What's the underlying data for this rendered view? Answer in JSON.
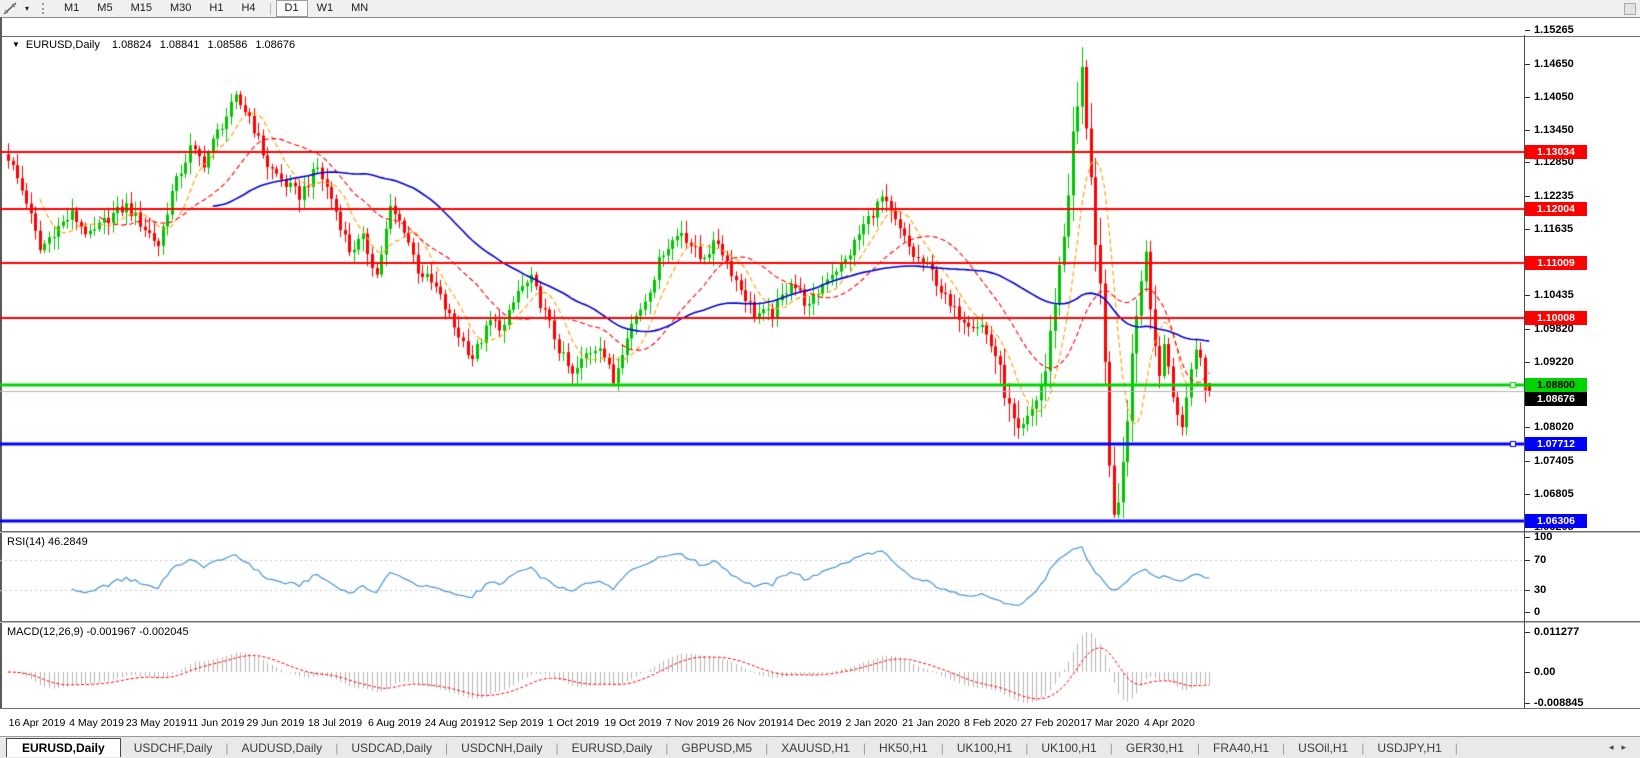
{
  "toolbar": {
    "dropdown_caret": "▾",
    "timeframes": [
      {
        "label": "M1",
        "active": false
      },
      {
        "label": "M5",
        "active": false
      },
      {
        "label": "M15",
        "active": false
      },
      {
        "label": "M30",
        "active": false
      },
      {
        "label": "H1",
        "active": false
      },
      {
        "label": "H4",
        "active": false
      },
      {
        "label": "D1",
        "active": true
      },
      {
        "label": "W1",
        "active": false
      },
      {
        "label": "MN",
        "active": false
      }
    ]
  },
  "window": {
    "title_caret": "▼",
    "symbol_title": "EURUSD,Daily",
    "open": "1.08824",
    "high": "1.08841",
    "low": "1.08586",
    "close": "1.08676"
  },
  "price_axis": {
    "ticks": [
      "1.15265",
      "1.14650",
      "1.14050",
      "1.13450",
      "1.12850",
      "1.12235",
      "1.11635",
      "1.10435",
      "1.09820",
      "1.09220",
      "1.08020",
      "1.07405",
      "1.06805",
      "1.06205"
    ],
    "badges": [
      {
        "value": "1.13034",
        "bg": "#ff0000",
        "fg": "#ffffff"
      },
      {
        "value": "1.12004",
        "bg": "#ff0000",
        "fg": "#ffffff"
      },
      {
        "value": "1.11009",
        "bg": "#ff0000",
        "fg": "#ffffff"
      },
      {
        "value": "1.10008",
        "bg": "#ff0000",
        "fg": "#ffffff"
      },
      {
        "value": "1.08800",
        "bg": "#00d400",
        "fg": "#000000"
      },
      {
        "value": "1.08676",
        "bg": "#000000",
        "fg": "#ffffff"
      },
      {
        "value": "1.07712",
        "bg": "#0000ff",
        "fg": "#ffffff"
      },
      {
        "value": "1.06306",
        "bg": "#0000ff",
        "fg": "#ffffff"
      }
    ]
  },
  "hlines": [
    {
      "price": 1.13034,
      "color": "#ff0000",
      "width": 2,
      "handle": false
    },
    {
      "price": 1.12004,
      "color": "#ff0000",
      "width": 2,
      "handle": false
    },
    {
      "price": 1.11009,
      "color": "#ff0000",
      "width": 2,
      "handle": false
    },
    {
      "price": 1.10008,
      "color": "#ff0000",
      "width": 2,
      "handle": false
    },
    {
      "price": 1.088,
      "color": "#00d400",
      "width": 3,
      "handle": true
    },
    {
      "price": 1.08676,
      "color": "#b4b4b4",
      "width": 1,
      "handle": false
    },
    {
      "price": 1.07712,
      "color": "#0000ff",
      "width": 3,
      "handle": true
    },
    {
      "price": 1.06306,
      "color": "#0000ff",
      "width": 3,
      "handle": false
    }
  ],
  "rsi": {
    "label": "RSI(14) 46.2849",
    "period": 14,
    "value": "46.2849",
    "axis": [
      "100",
      "70",
      "30",
      "0"
    ],
    "levels": [
      70,
      30
    ],
    "line_color": "#4a96d2"
  },
  "macd": {
    "label": "MACD(12,26,9) -0.001967 -0.002045",
    "fast": 12,
    "slow": 26,
    "signal": 9,
    "values": [
      "-0.001967",
      "-0.002045"
    ],
    "axis": [
      "0.011277",
      "0.00",
      "-0.008845"
    ],
    "hist_color": "#b4b4b4",
    "signal_color": "#ff0000"
  },
  "date_axis": {
    "labels": [
      "16 Apr 2019",
      "4 May 2019",
      "23 May 2019",
      "11 Jun 2019",
      "29 Jun 2019",
      "18 Jul 2019",
      "6 Aug 2019",
      "24 Aug 2019",
      "12 Sep 2019",
      "1 Oct 2019",
      "19 Oct 2019",
      "7 Nov 2019",
      "26 Nov 2019",
      "14 Dec 2019",
      "2 Jan 2020",
      "21 Jan 2020",
      "8 Feb 2020",
      "27 Feb 2020",
      "17 Mar 2020",
      "4 Apr 2020"
    ]
  },
  "tabs": {
    "items": [
      {
        "label": "EURUSD,Daily",
        "active": true
      },
      {
        "label": "USDCHF,Daily",
        "active": false
      },
      {
        "label": "AUDUSD,Daily",
        "active": false
      },
      {
        "label": "USDCAD,Daily",
        "active": false
      },
      {
        "label": "USDCNH,Daily",
        "active": false
      },
      {
        "label": "EURUSD,Daily",
        "active": false
      },
      {
        "label": "GBPUSD,M5",
        "active": false
      },
      {
        "label": "XAUUSD,H1",
        "active": false
      },
      {
        "label": "HK50,H1",
        "active": false
      },
      {
        "label": "UK100,H1",
        "active": false
      },
      {
        "label": "UK100,H1",
        "active": false
      },
      {
        "label": "GER30,H1",
        "active": false
      },
      {
        "label": "FRA40,H1",
        "active": false
      },
      {
        "label": "USOil,H1",
        "active": false
      },
      {
        "label": "USDJPY,H1",
        "active": false
      }
    ],
    "scroll_left": "◂",
    "scroll_right": "▸"
  },
  "chart_data": {
    "type": "candlestick",
    "symbol": "EURUSD",
    "timeframe": "Daily",
    "visible_range": {
      "price_min": 1.062,
      "price_max": 1.1527,
      "date_start": "16 Apr 2019",
      "date_end": "17 Apr 2020"
    },
    "bar_count": 265,
    "up_color": "#00c400",
    "down_color": "#ff0000",
    "last_candle": {
      "open": 1.08824,
      "high": 1.08841,
      "low": 1.08586,
      "close": 1.08676
    },
    "extremes": {
      "high": 1.14952,
      "high_day": 236,
      "low": 1.0636,
      "low_day": 244
    },
    "anchors": [
      [
        0,
        1.1295
      ],
      [
        4,
        1.1215
      ],
      [
        7,
        1.1125
      ],
      [
        10,
        1.116
      ],
      [
        14,
        1.119
      ],
      [
        18,
        1.115
      ],
      [
        22,
        1.1185
      ],
      [
        26,
        1.1205
      ],
      [
        30,
        1.1165
      ],
      [
        33,
        1.1135
      ],
      [
        36,
        1.123
      ],
      [
        40,
        1.131
      ],
      [
        43,
        1.1285
      ],
      [
        46,
        1.134
      ],
      [
        50,
        1.14
      ],
      [
        53,
        1.137
      ],
      [
        57,
        1.128
      ],
      [
        61,
        1.1245
      ],
      [
        64,
        1.1225
      ],
      [
        68,
        1.1275
      ],
      [
        71,
        1.122
      ],
      [
        75,
        1.1125
      ],
      [
        78,
        1.1145
      ],
      [
        81,
        1.108
      ],
      [
        84,
        1.12
      ],
      [
        87,
        1.1165
      ],
      [
        90,
        1.109
      ],
      [
        94,
        1.1055
      ],
      [
        98,
        1.0985
      ],
      [
        102,
        1.093
      ],
      [
        106,
        1.0995
      ],
      [
        109,
        1.0985
      ],
      [
        112,
        1.105
      ],
      [
        115,
        1.107
      ],
      [
        118,
        1.101
      ],
      [
        121,
        1.0945
      ],
      [
        124,
        1.0895
      ],
      [
        127,
        1.0935
      ],
      [
        130,
        1.0955
      ],
      [
        133,
        1.0885
      ],
      [
        136,
        1.0975
      ],
      [
        140,
        1.1035
      ],
      [
        144,
        1.1125
      ],
      [
        148,
        1.116
      ],
      [
        152,
        1.111
      ],
      [
        156,
        1.114
      ],
      [
        160,
        1.107
      ],
      [
        164,
        1.101
      ],
      [
        168,
        1.1008
      ],
      [
        172,
        1.107
      ],
      [
        176,
        1.102
      ],
      [
        180,
        1.1078
      ],
      [
        184,
        1.1105
      ],
      [
        188,
        1.117
      ],
      [
        192,
        1.122
      ],
      [
        195,
        1.1175
      ],
      [
        199,
        1.1115
      ],
      [
        203,
        1.1085
      ],
      [
        207,
        1.102
      ],
      [
        211,
        1.0995
      ],
      [
        214,
        1.0988
      ],
      [
        217,
        1.0935
      ],
      [
        220,
        1.0835
      ],
      [
        222,
        1.0785
      ],
      [
        224,
        1.0812
      ],
      [
        226,
        1.0855
      ],
      [
        228,
        1.0905
      ],
      [
        230,
        1.1035
      ],
      [
        232,
        1.1155
      ],
      [
        234,
        1.1325
      ],
      [
        236,
        1.1445
      ],
      [
        237,
        1.136
      ],
      [
        238,
        1.127
      ],
      [
        239,
        1.113
      ],
      [
        240,
        1.104
      ],
      [
        241,
        1.09
      ],
      [
        242,
        1.072
      ],
      [
        243,
        1.0665
      ],
      [
        244,
        1.064
      ],
      [
        245,
        1.0735
      ],
      [
        246,
        1.083
      ],
      [
        247,
        1.0925
      ],
      [
        248,
        1.102
      ],
      [
        249,
        1.1085
      ],
      [
        250,
        1.1135
      ],
      [
        251,
        1.104
      ],
      [
        252,
        1.095
      ],
      [
        253,
        1.0902
      ],
      [
        254,
        1.0955
      ],
      [
        255,
        1.0915
      ],
      [
        256,
        1.0868
      ],
      [
        257,
        1.0828
      ],
      [
        258,
        1.0792
      ],
      [
        259,
        1.0855
      ],
      [
        260,
        1.0915
      ],
      [
        261,
        1.0945
      ],
      [
        262,
        1.0925
      ],
      [
        263,
        1.0872
      ],
      [
        264,
        1.08676
      ]
    ],
    "mas": [
      {
        "period": 8,
        "color": "#ff9b00",
        "dash": [
          5,
          3
        ]
      },
      {
        "period": 21,
        "color": "#ff0000",
        "dash": [
          5,
          3
        ]
      },
      {
        "period": 46,
        "color": "#0000d0",
        "dash": []
      }
    ]
  }
}
